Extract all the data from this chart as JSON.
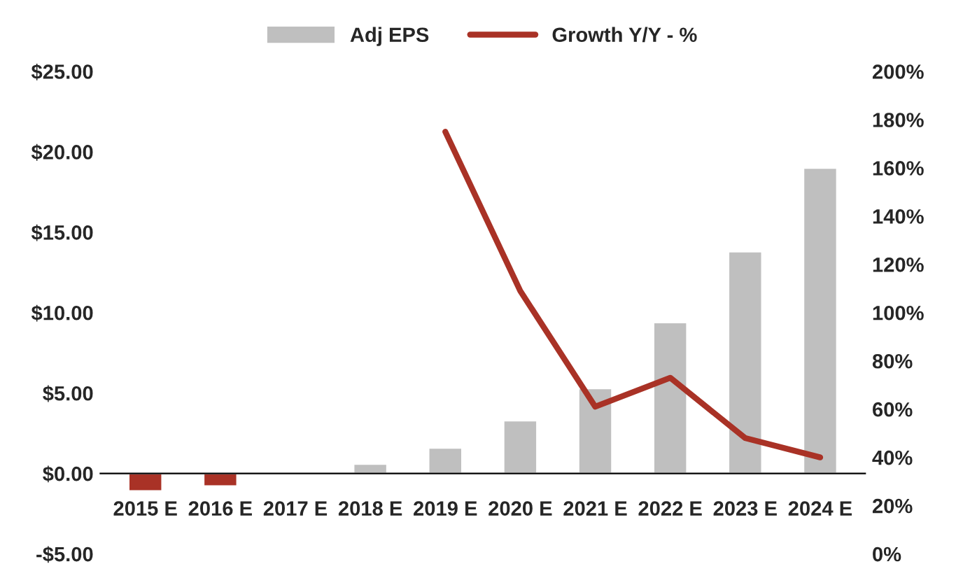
{
  "chart_data": {
    "type": "bar",
    "categories": [
      "2015 E",
      "2016 E",
      "2017 E",
      "2018 E",
      "2019 E",
      "2020 E",
      "2021 E",
      "2022 E",
      "2023 E",
      "2024 E"
    ],
    "series": [
      {
        "name": "Adj EPS",
        "color": "#bfbfbf",
        "colors": [
          "#a93226",
          "#a93226",
          "#bfbfbf",
          "#bfbfbf",
          "#bfbfbf",
          "#bfbfbf",
          "#bfbfbf",
          "#bfbfbf",
          "#bfbfbf",
          "#bfbfbf"
        ],
        "values": [
          -1.1,
          -0.8,
          null,
          0.6,
          1.6,
          3.3,
          5.3,
          9.4,
          13.8,
          19.0
        ]
      },
      {
        "name": "Growth Y/Y - %",
        "type": "line",
        "axis": "y2",
        "color": "#a93226",
        "values": [
          null,
          null,
          null,
          null,
          175,
          109,
          61,
          73,
          48,
          40
        ]
      }
    ],
    "ylim": [
      -5,
      25
    ],
    "yticks": [
      {
        "value": -5,
        "label": "-$5.00"
      },
      {
        "value": 0,
        "label": "$0.00"
      },
      {
        "value": 5,
        "label": "$5.00"
      },
      {
        "value": 10,
        "label": "$10.00"
      },
      {
        "value": 15,
        "label": "$15.00"
      },
      {
        "value": 20,
        "label": "$20.00"
      },
      {
        "value": 25,
        "label": "$25.00"
      }
    ],
    "y2lim": [
      0,
      200
    ],
    "y2ticks": [
      {
        "value": 0,
        "label": "0%"
      },
      {
        "value": 20,
        "label": "20%"
      },
      {
        "value": 40,
        "label": "40%"
      },
      {
        "value": 60,
        "label": "60%"
      },
      {
        "value": 80,
        "label": "80%"
      },
      {
        "value": 100,
        "label": "100%"
      },
      {
        "value": 120,
        "label": "120%"
      },
      {
        "value": 140,
        "label": "140%"
      },
      {
        "value": 160,
        "label": "160%"
      },
      {
        "value": 180,
        "label": "180%"
      },
      {
        "value": 200,
        "label": "200%"
      }
    ],
    "legend": "top",
    "grid": false
  }
}
